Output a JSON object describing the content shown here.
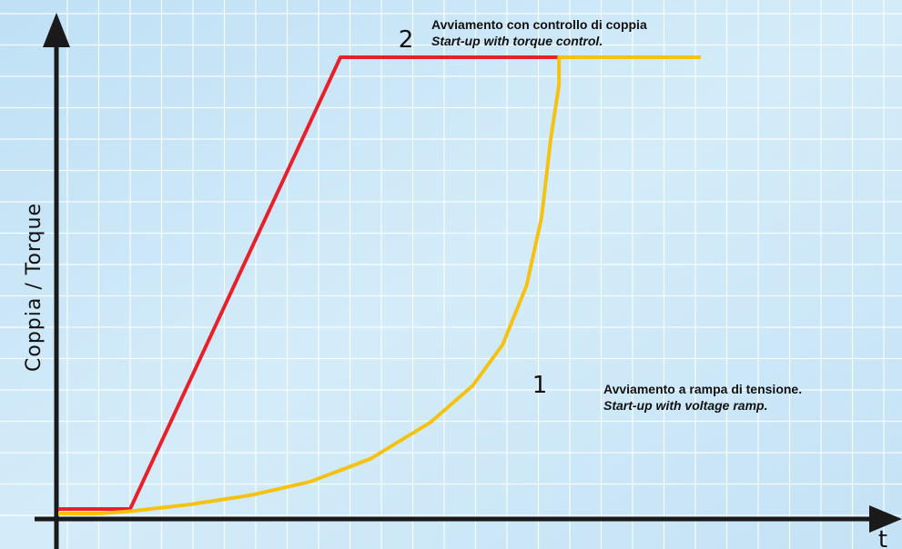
{
  "chart_data": {
    "type": "line",
    "ylabel": "Coppia / Torque",
    "xlabel": "t",
    "xlim": [
      0,
      100
    ],
    "ylim": [
      0,
      100
    ],
    "grid": true,
    "series": [
      {
        "id": "torque-control",
        "marker": "2",
        "label_it": "Avviamento con controllo di coppia",
        "label_en": "Start-up with torque control.",
        "color": "#e8202a",
        "points": [
          [
            0,
            1
          ],
          [
            5,
            1
          ],
          [
            40,
            100
          ],
          [
            100,
            100
          ]
        ]
      },
      {
        "id": "voltage-ramp",
        "marker": "1",
        "label_it": "Avviamento a rampa di tensione.",
        "label_en": "Start-up with voltage ramp.",
        "color": "#f5c211",
        "points": [
          [
            0,
            0
          ],
          [
            5,
            0.5
          ],
          [
            15,
            2
          ],
          [
            25,
            4
          ],
          [
            35,
            7
          ],
          [
            45,
            12
          ],
          [
            55,
            20
          ],
          [
            62,
            28
          ],
          [
            67,
            37
          ],
          [
            71,
            50
          ],
          [
            73.5,
            65
          ],
          [
            75,
            82
          ],
          [
            76.4,
            94
          ],
          [
            76.4,
            100
          ],
          [
            100,
            100
          ]
        ]
      }
    ]
  }
}
